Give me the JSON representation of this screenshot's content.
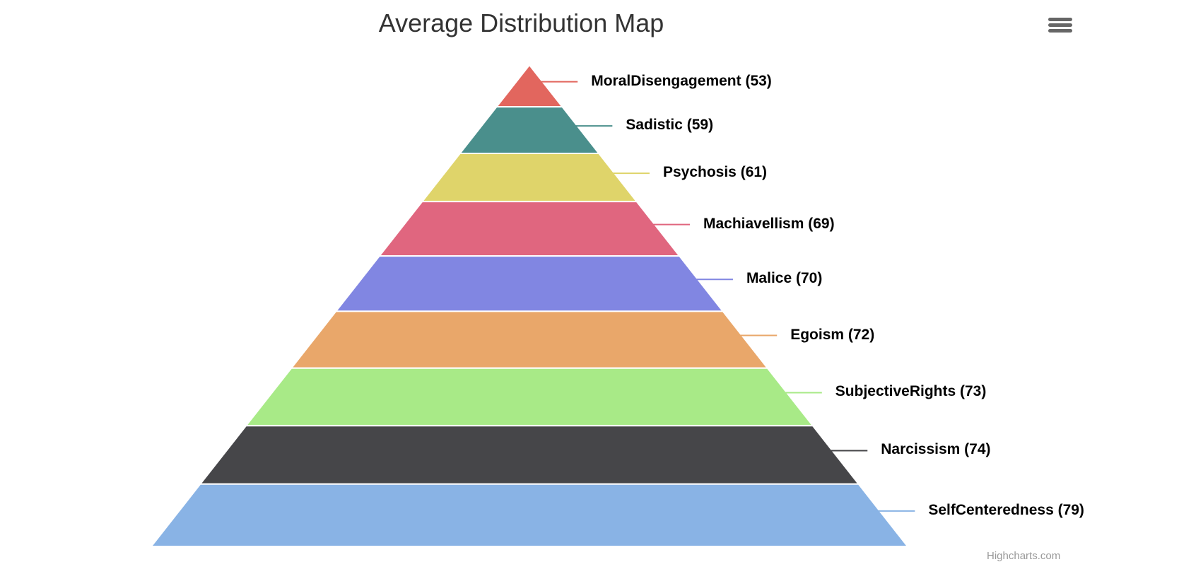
{
  "chart_data": {
    "type": "pyramid",
    "title": "Average Distribution Map",
    "series": [
      {
        "name": "",
        "points": [
          {
            "name": "MoralDisengagement",
            "value": 53,
            "color": "#e2665e",
            "label": "MoralDisengagement (53)"
          },
          {
            "name": "Sadistic",
            "value": 59,
            "color": "#4a8f8c",
            "label": "Sadistic (59)"
          },
          {
            "name": "Psychosis",
            "value": 61,
            "color": "#dfd46a",
            "label": "Psychosis (61)"
          },
          {
            "name": "Machiavellism",
            "value": 69,
            "color": "#e0667f",
            "label": "Machiavellism (69)"
          },
          {
            "name": "Malice",
            "value": 70,
            "color": "#8186e2",
            "label": "Malice (70)"
          },
          {
            "name": "Egoism",
            "value": 72,
            "color": "#e9a76a",
            "label": "Egoism (72)"
          },
          {
            "name": "SubjectiveRights",
            "value": 73,
            "color": "#a8ea87",
            "label": "SubjectiveRights (73)"
          },
          {
            "name": "Narcissism",
            "value": 74,
            "color": "#464649",
            "label": "Narcissism (74)"
          },
          {
            "name": "SelfCenteredness",
            "value": 79,
            "color": "#89b3e5",
            "label": "SelfCenteredness (79)"
          }
        ]
      }
    ]
  },
  "ui": {
    "menu_icon": "hamburger-menu-icon",
    "credits": "Highcharts.com"
  }
}
